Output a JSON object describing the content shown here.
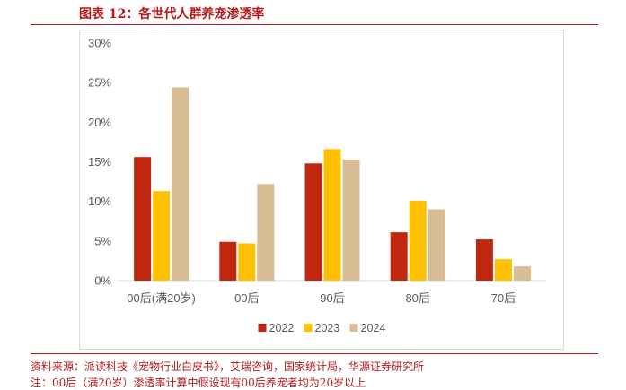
{
  "figure": {
    "title": "图表 12：各世代人群养宠渗透率",
    "source": "资料来源：派读科技《宠物行业白皮书》，艾瑞咨询，国家统计局，华源证券研究所",
    "note": "注：00后（满20岁）渗透率计算中假设现有00后养宠者均为20岁以上"
  },
  "colors": {
    "2022": "#c0270f",
    "2023": "#ffc000",
    "2024": "#d9bd94",
    "brand": "#b31b1b"
  },
  "chart_data": {
    "type": "bar",
    "categories": [
      "00后(满20岁)",
      "00后",
      "90后",
      "80后",
      "70后"
    ],
    "series": [
      {
        "name": "2022",
        "values": [
          15.6,
          4.9,
          14.8,
          6.1,
          5.2
        ]
      },
      {
        "name": "2023",
        "values": [
          11.3,
          4.7,
          16.6,
          10.1,
          2.7
        ]
      },
      {
        "name": "2024",
        "values": [
          24.4,
          12.2,
          15.3,
          9.0,
          1.8
        ]
      }
    ],
    "ylim": [
      0,
      30
    ],
    "yticks": [
      "0%",
      "5%",
      "10%",
      "15%",
      "20%",
      "25%",
      "30%"
    ],
    "grid": false,
    "legend": "bottom"
  }
}
